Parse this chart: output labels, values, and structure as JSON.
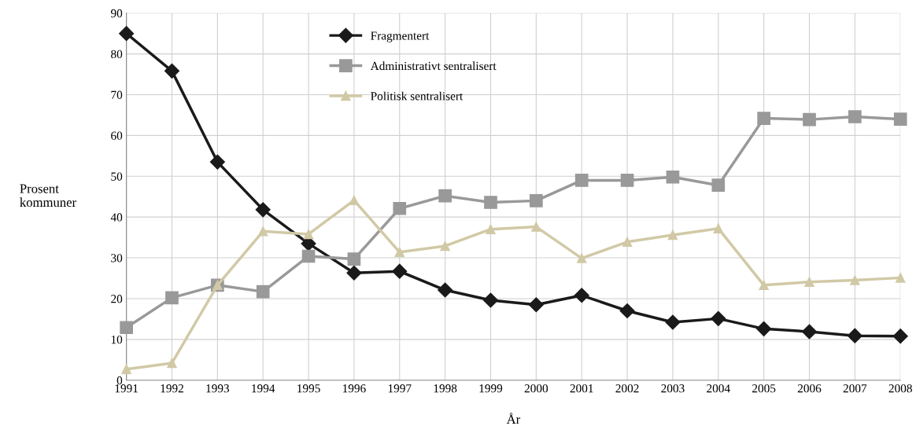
{
  "chart_data": {
    "type": "line",
    "xlabel": "År",
    "ylabel": "Prosent\nkommuner",
    "x": [
      1991,
      1992,
      1993,
      1994,
      1995,
      1996,
      1997,
      1998,
      1999,
      2000,
      2001,
      2002,
      2003,
      2004,
      2005,
      2006,
      2007,
      2008
    ],
    "series": [
      {
        "name": "Fragmentert",
        "color": "#1a1a1a",
        "marker": "diamond",
        "values": [
          85,
          75.8,
          53.5,
          41.8,
          33.5,
          26.3,
          26.7,
          22.1,
          19.6,
          18.5,
          20.8,
          17.0,
          14.2,
          15.1,
          12.6,
          11.9,
          10.9,
          10.8
        ]
      },
      {
        "name": "Administrativt sentralisert",
        "color": "#999999",
        "marker": "square",
        "values": [
          12.9,
          20.2,
          23.3,
          21.7,
          30.4,
          29.7,
          42.1,
          45.2,
          43.6,
          44.0,
          49.0,
          49.0,
          49.8,
          47.8,
          64.2,
          63.9,
          64.6,
          64.0
        ]
      },
      {
        "name": "Politisk sentralisert",
        "color": "#d1c9a6",
        "marker": "triangle",
        "values": [
          2.7,
          4.2,
          23.3,
          36.5,
          35.8,
          44.1,
          31.4,
          32.9,
          37.0,
          37.6,
          29.9,
          33.9,
          35.6,
          37.2,
          23.3,
          24.1,
          24.5,
          25.1
        ]
      }
    ],
    "xlim": [
      1991,
      2008
    ],
    "xticks": [
      1991,
      1992,
      1993,
      1994,
      1995,
      1996,
      1997,
      1998,
      1999,
      2000,
      2001,
      2002,
      2003,
      2004,
      2005,
      2006,
      2007,
      2008
    ],
    "ylim": [
      0,
      90
    ],
    "yticks": [
      0,
      10,
      20,
      30,
      40,
      50,
      60,
      70,
      80,
      90
    ],
    "grid": true,
    "legend": "top",
    "line_style": "solid"
  }
}
